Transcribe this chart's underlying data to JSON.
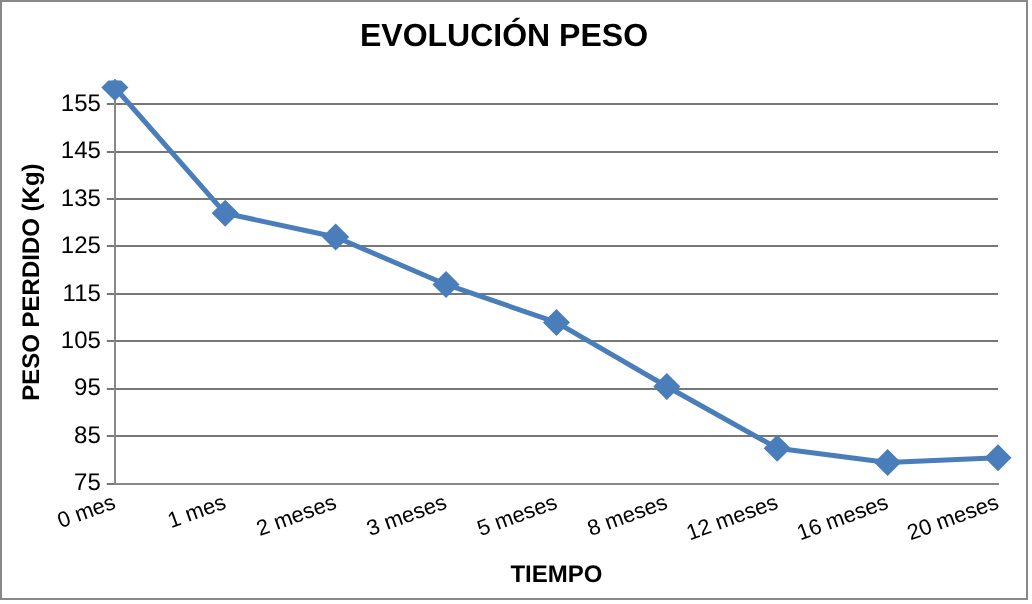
{
  "chart_data": {
    "type": "line",
    "title": "EVOLUCIÓN PESO",
    "xlabel": "TIEMPO",
    "ylabel": "PESO PERDIDO (Kg)",
    "categories": [
      "0 mes",
      "1 mes",
      "2 meses",
      "3 meses",
      "5 meses",
      "8 meses",
      "12 meses",
      "16 meses",
      "20 meses"
    ],
    "series": [
      {
        "color": "#4a7ebb",
        "values": [
          158.5,
          132,
          127,
          117,
          109,
          95.5,
          82.5,
          79.5,
          80.5
        ]
      }
    ],
    "ylim": [
      75,
      160
    ],
    "yticks": [
      75,
      85,
      95,
      105,
      115,
      125,
      135,
      145,
      155
    ],
    "grid": "y",
    "marker": "diamond",
    "legend": false
  }
}
